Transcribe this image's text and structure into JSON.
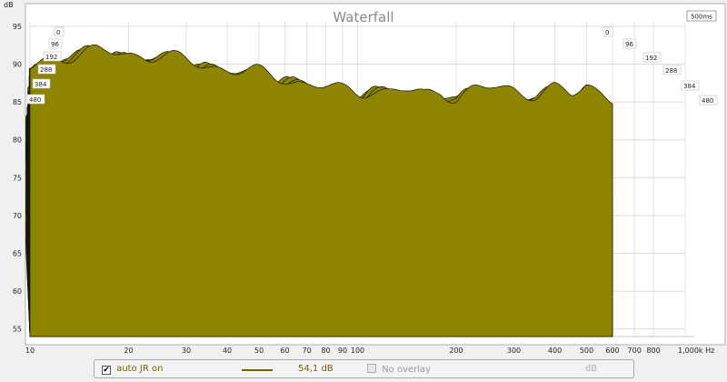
{
  "chart_data": {
    "type": "area",
    "title": "Waterfall",
    "y_unit": "dB",
    "z_unit": "500ms",
    "y_ticks": [
      "95",
      "90",
      "85",
      "80",
      "75",
      "70",
      "65",
      "60",
      "55"
    ],
    "ylim": [
      54,
      98
    ],
    "x_ticks": [
      "10",
      "20",
      "30",
      "40",
      "50",
      "60",
      "70",
      "80",
      "90",
      "100",
      "200",
      "300",
      "400",
      "500",
      "600",
      "700",
      "800",
      "1,000k Hz"
    ],
    "x_scale": "log",
    "xlim": [
      10,
      1000
    ],
    "time_slices_ms": [
      "0",
      "96",
      "192",
      "288",
      "384",
      "480"
    ],
    "series": {
      "color": "#8d8400",
      "slice_count": 46,
      "front_slice_db": [
        [
          10,
          89.3
        ],
        [
          11,
          90.3
        ],
        [
          12,
          91.0
        ],
        [
          14,
          91.4
        ],
        [
          16,
          91.6
        ],
        [
          18,
          91.5
        ],
        [
          20,
          91.3
        ],
        [
          22,
          91.3
        ],
        [
          25,
          91.1
        ],
        [
          28,
          90.6
        ],
        [
          30,
          90.4
        ],
        [
          33,
          90.1
        ],
        [
          36,
          89.8
        ],
        [
          40,
          89.4
        ],
        [
          45,
          89.0
        ],
        [
          50,
          88.8
        ],
        [
          55,
          88.5
        ],
        [
          60,
          88.3
        ],
        [
          70,
          87.3
        ],
        [
          80,
          87.0
        ],
        [
          90,
          86.5
        ],
        [
          100,
          86.5
        ],
        [
          110,
          86.8
        ],
        [
          125,
          86.2
        ],
        [
          140,
          86.5
        ],
        [
          160,
          86.0
        ],
        [
          180,
          86.8
        ],
        [
          200,
          85.5
        ],
        [
          230,
          86.5
        ],
        [
          260,
          87.0
        ],
        [
          300,
          86.8
        ],
        [
          350,
          86.0
        ],
        [
          400,
          86.5
        ],
        [
          450,
          86.0
        ],
        [
          500,
          87.5
        ],
        [
          550,
          86.5
        ],
        [
          600,
          85.5
        ]
      ]
    }
  },
  "legend": {
    "auto_checked": true,
    "auto_label": "auto JR on",
    "line_color": "#6f6500",
    "level_value": "54,1 dB",
    "overlay_checked": false,
    "overlay_label": "No overlay",
    "overlay_unit": "dB"
  }
}
